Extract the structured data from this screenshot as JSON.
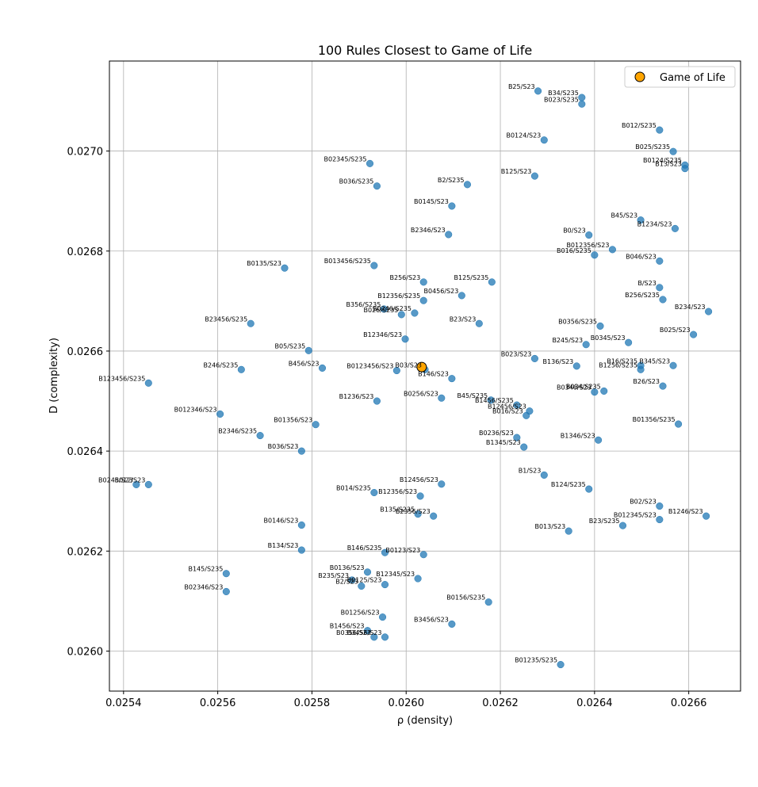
{
  "chart_data": {
    "type": "scatter",
    "title": "100 Rules Closest to Game of Life",
    "xlabel": "ρ (density)",
    "ylabel": "D (complexity)",
    "xlim": [
      0.02537,
      0.02671
    ],
    "ylim": [
      0.02592,
      0.02718
    ],
    "xticks": [
      0.0254,
      0.0256,
      0.0258,
      0.026,
      0.0262,
      0.0264,
      0.0266
    ],
    "yticks": [
      0.026,
      0.0262,
      0.0264,
      0.0266,
      0.0268,
      0.027
    ],
    "grid": true,
    "legend": {
      "position": "top-right",
      "label": "Game of Life",
      "color": "#ffa500"
    },
    "series_color": "#1f77b4",
    "highlight": {
      "label": "B3/S23",
      "x": 0.026033,
      "y": 0.026568
    },
    "points": [
      {
        "label": "B25/S23",
        "x": 0.02628,
        "y": 0.02712
      },
      {
        "label": "B34/S235",
        "x": 0.026373,
        "y": 0.027107
      },
      {
        "label": "B023/S235",
        "x": 0.026373,
        "y": 0.027094
      },
      {
        "label": "B012/S235",
        "x": 0.026538,
        "y": 0.027042
      },
      {
        "label": "B0124/S23",
        "x": 0.026293,
        "y": 0.027022
      },
      {
        "label": "B025/S235",
        "x": 0.026567,
        "y": 0.026999
      },
      {
        "label": "B02345/S235",
        "x": 0.025923,
        "y": 0.026975
      },
      {
        "label": "B0124/S235",
        "x": 0.026592,
        "y": 0.026972
      },
      {
        "label": "B13/S23",
        "x": 0.026592,
        "y": 0.026965
      },
      {
        "label": "B125/S23",
        "x": 0.026273,
        "y": 0.02695
      },
      {
        "label": "B2/S235",
        "x": 0.02613,
        "y": 0.026933
      },
      {
        "label": "B036/S235",
        "x": 0.025938,
        "y": 0.02693
      },
      {
        "label": "B0145/S23",
        "x": 0.026097,
        "y": 0.02689
      },
      {
        "label": "B45/S23",
        "x": 0.026498,
        "y": 0.026862
      },
      {
        "label": "B1234/S23",
        "x": 0.026571,
        "y": 0.026845
      },
      {
        "label": "B0/S23",
        "x": 0.026388,
        "y": 0.026832
      },
      {
        "label": "B2346/S23",
        "x": 0.02609,
        "y": 0.026833
      },
      {
        "label": "B012356/S23",
        "x": 0.026438,
        "y": 0.026803
      },
      {
        "label": "B016/S235",
        "x": 0.0264,
        "y": 0.026792
      },
      {
        "label": "B046/S23",
        "x": 0.026538,
        "y": 0.02678
      },
      {
        "label": "B0135/S23",
        "x": 0.025742,
        "y": 0.026766
      },
      {
        "label": "B013456/S235",
        "x": 0.025932,
        "y": 0.026771
      },
      {
        "label": "B256/S23",
        "x": 0.026037,
        "y": 0.026738
      },
      {
        "label": "B125/S235",
        "x": 0.026182,
        "y": 0.026738
      },
      {
        "label": "B/S23",
        "x": 0.026538,
        "y": 0.026727
      },
      {
        "label": "B0456/S23",
        "x": 0.026118,
        "y": 0.026711
      },
      {
        "label": "B256/S235",
        "x": 0.026545,
        "y": 0.026703
      },
      {
        "label": "B12356/S235",
        "x": 0.026037,
        "y": 0.026701
      },
      {
        "label": "B234/S23",
        "x": 0.026642,
        "y": 0.026679
      },
      {
        "label": "B356/S235",
        "x": 0.025953,
        "y": 0.026684
      },
      {
        "label": "B0246/S235",
        "x": 0.026018,
        "y": 0.026676
      },
      {
        "label": "B026/S235",
        "x": 0.02599,
        "y": 0.026673
      },
      {
        "label": "B23456/S235",
        "x": 0.02567,
        "y": 0.026655
      },
      {
        "label": "B23/S23",
        "x": 0.026155,
        "y": 0.026655
      },
      {
        "label": "B0356/S235",
        "x": 0.026412,
        "y": 0.02665
      },
      {
        "label": "B025/S23",
        "x": 0.02661,
        "y": 0.026633
      },
      {
        "label": "B12346/S23",
        "x": 0.025998,
        "y": 0.026624
      },
      {
        "label": "B245/S23",
        "x": 0.026382,
        "y": 0.026613
      },
      {
        "label": "B0345/S23",
        "x": 0.026472,
        "y": 0.026617
      },
      {
        "label": "B05/S235",
        "x": 0.025793,
        "y": 0.026601
      },
      {
        "label": "B023/S23",
        "x": 0.026273,
        "y": 0.026585
      },
      {
        "label": "B136/S23",
        "x": 0.026362,
        "y": 0.02657
      },
      {
        "label": "B16/S235",
        "x": 0.026498,
        "y": 0.026571
      },
      {
        "label": "B345/S23",
        "x": 0.026567,
        "y": 0.026571
      },
      {
        "label": "B1256/S235",
        "x": 0.026498,
        "y": 0.026563
      },
      {
        "label": "B246/S235",
        "x": 0.02565,
        "y": 0.026563
      },
      {
        "label": "B456/S23",
        "x": 0.025822,
        "y": 0.026566
      },
      {
        "label": "B0123456/S23",
        "x": 0.02598,
        "y": 0.026561
      },
      {
        "label": "B03/S23",
        "x": 0.02604,
        "y": 0.026563
      },
      {
        "label": "B146/S23",
        "x": 0.026097,
        "y": 0.026545
      },
      {
        "label": "B123456/S235",
        "x": 0.025453,
        "y": 0.026536
      },
      {
        "label": "B26/S23",
        "x": 0.026545,
        "y": 0.02653
      },
      {
        "label": "B034/S235",
        "x": 0.02642,
        "y": 0.02652
      },
      {
        "label": "B0346/S23",
        "x": 0.0264,
        "y": 0.026518
      },
      {
        "label": "B0256/S23",
        "x": 0.026075,
        "y": 0.026506
      },
      {
        "label": "B1236/S23",
        "x": 0.025938,
        "y": 0.0265
      },
      {
        "label": "B45/S235",
        "x": 0.02618,
        "y": 0.026502
      },
      {
        "label": "B1456/S235",
        "x": 0.026235,
        "y": 0.026492
      },
      {
        "label": "B12456/S23",
        "x": 0.026262,
        "y": 0.02648
      },
      {
        "label": "B016/S23",
        "x": 0.026255,
        "y": 0.026471
      },
      {
        "label": "B012346/S23",
        "x": 0.025605,
        "y": 0.026474
      },
      {
        "label": "B01356/S235",
        "x": 0.026578,
        "y": 0.026454
      },
      {
        "label": "B01356/S23",
        "x": 0.025808,
        "y": 0.026453
      },
      {
        "label": "B2346/S235",
        "x": 0.02569,
        "y": 0.026431
      },
      {
        "label": "B0236/S23",
        "x": 0.026235,
        "y": 0.026427
      },
      {
        "label": "B1346/S23",
        "x": 0.026408,
        "y": 0.026422
      },
      {
        "label": "B1345/S23",
        "x": 0.02625,
        "y": 0.026408
      },
      {
        "label": "B036/S23",
        "x": 0.025778,
        "y": 0.0264
      },
      {
        "label": "B1/S23",
        "x": 0.026293,
        "y": 0.026352
      },
      {
        "label": "B0245/S23",
        "x": 0.025427,
        "y": 0.026333
      },
      {
        "label": "B012/S23",
        "x": 0.025453,
        "y": 0.026333
      },
      {
        "label": "B12456/S23",
        "x": 0.026075,
        "y": 0.026334
      },
      {
        "label": "B124/S235",
        "x": 0.026388,
        "y": 0.026324
      },
      {
        "label": "B014/S235",
        "x": 0.025932,
        "y": 0.026317
      },
      {
        "label": "B12356/S23",
        "x": 0.02603,
        "y": 0.02631
      },
      {
        "label": "B02/S23",
        "x": 0.026538,
        "y": 0.02629
      },
      {
        "label": "B135/S235",
        "x": 0.026025,
        "y": 0.026274
      },
      {
        "label": "B2356/S23",
        "x": 0.026058,
        "y": 0.02627
      },
      {
        "label": "B1246/S23",
        "x": 0.026637,
        "y": 0.02627
      },
      {
        "label": "B012345/S23",
        "x": 0.026538,
        "y": 0.026263
      },
      {
        "label": "B0146/S23",
        "x": 0.025778,
        "y": 0.026252
      },
      {
        "label": "B23/S235",
        "x": 0.02646,
        "y": 0.026251
      },
      {
        "label": "B013/S23",
        "x": 0.026345,
        "y": 0.02624
      },
      {
        "label": "B134/S23",
        "x": 0.025778,
        "y": 0.026202
      },
      {
        "label": "B146/S235",
        "x": 0.025955,
        "y": 0.026197
      },
      {
        "label": "B0123/S23",
        "x": 0.026037,
        "y": 0.026193
      },
      {
        "label": "B145/S235",
        "x": 0.025618,
        "y": 0.026155
      },
      {
        "label": "B0136/S23",
        "x": 0.025918,
        "y": 0.026158
      },
      {
        "label": "B235/S23",
        "x": 0.025885,
        "y": 0.026142
      },
      {
        "label": "B12345/S23",
        "x": 0.026025,
        "y": 0.026145
      },
      {
        "label": "B2/S23",
        "x": 0.025905,
        "y": 0.02613
      },
      {
        "label": "B0125/S23",
        "x": 0.025955,
        "y": 0.026133
      },
      {
        "label": "B02346/S23",
        "x": 0.025618,
        "y": 0.026119
      },
      {
        "label": "B0156/S235",
        "x": 0.026175,
        "y": 0.026098
      },
      {
        "label": "B01256/S23",
        "x": 0.02595,
        "y": 0.026068
      },
      {
        "label": "B3456/S23",
        "x": 0.026097,
        "y": 0.026054
      },
      {
        "label": "B1456/S23",
        "x": 0.025918,
        "y": 0.026041
      },
      {
        "label": "B0356/S23",
        "x": 0.025932,
        "y": 0.026028
      },
      {
        "label": "B3456/S23",
        "x": 0.025955,
        "y": 0.026028
      },
      {
        "label": "B01235/S235",
        "x": 0.026328,
        "y": 0.025973
      }
    ]
  }
}
